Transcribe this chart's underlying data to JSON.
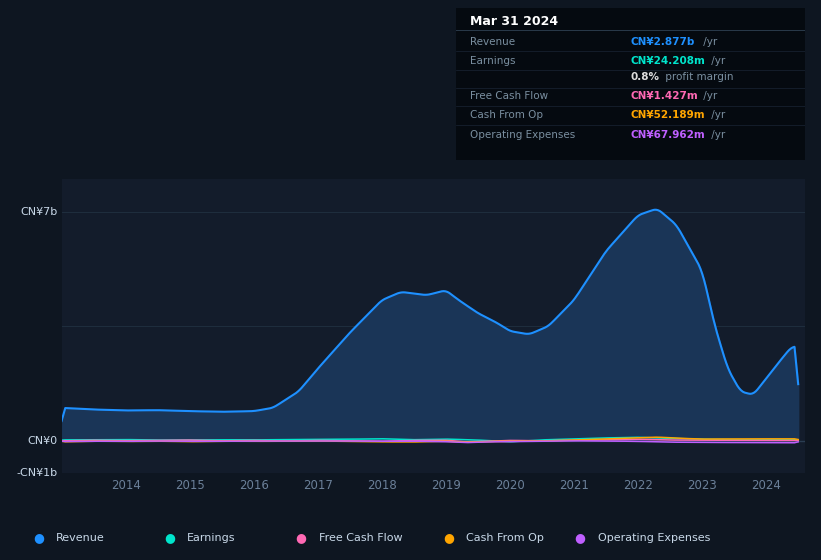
{
  "bg_color": "#0e1621",
  "plot_bg_color": "#131c2b",
  "revenue_color": "#1e90ff",
  "revenue_fill": "#1a3557",
  "earnings_color": "#00e5cc",
  "fcf_color": "#ff69b4",
  "cashop_color": "#ffa500",
  "opex_color": "#bf5fff",
  "grid_color": "#1e2d3d",
  "zero_line_color": "#2a3d52",
  "text_dim": "#6b8099",
  "text_bright": "#c8d8e8",
  "ylim": [
    -1000000000,
    8000000000
  ],
  "xlim_start": 2013.0,
  "xlim_end": 2024.6,
  "xtick_years": [
    2014,
    2015,
    2016,
    2017,
    2018,
    2019,
    2020,
    2021,
    2022,
    2023,
    2024
  ],
  "legend": [
    {
      "label": "Revenue",
      "color": "#1e90ff"
    },
    {
      "label": "Earnings",
      "color": "#00e5cc"
    },
    {
      "label": "Free Cash Flow",
      "color": "#ff69b4"
    },
    {
      "label": "Cash From Op",
      "color": "#ffa500"
    },
    {
      "label": "Operating Expenses",
      "color": "#bf5fff"
    }
  ],
  "infobox": {
    "date": "Mar 31 2024",
    "rows": [
      {
        "label": "Revenue",
        "value": "CN¥2.877b",
        "unit": " /yr",
        "value_color": "#1e90ff"
      },
      {
        "label": "Earnings",
        "value": "CN¥24.208m",
        "unit": " /yr",
        "value_color": "#00e5cc"
      },
      {
        "label": "",
        "value": "0.8%",
        "unit": " profit margin",
        "value_color": "#dddddd"
      },
      {
        "label": "Free Cash Flow",
        "value": "CN¥1.427m",
        "unit": " /yr",
        "value_color": "#ff69b4"
      },
      {
        "label": "Cash From Op",
        "value": "CN¥52.189m",
        "unit": " /yr",
        "value_color": "#ffa500"
      },
      {
        "label": "Operating Expenses",
        "value": "CN¥67.962m",
        "unit": " /yr",
        "value_color": "#bf5fff"
      }
    ]
  }
}
